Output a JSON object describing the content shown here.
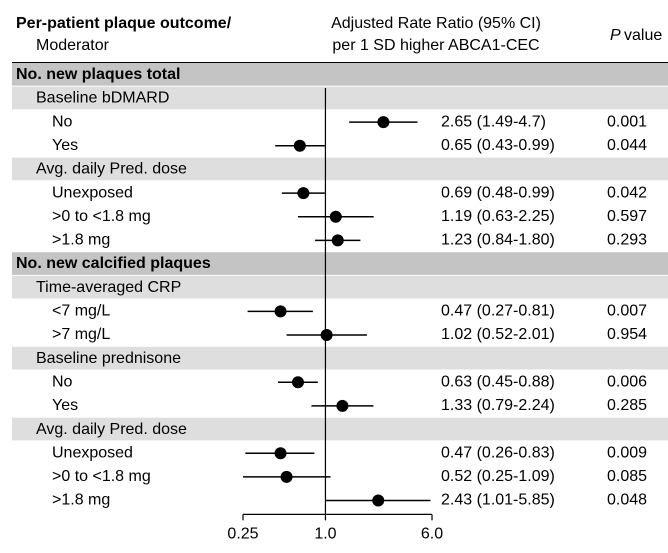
{
  "chart_data": {
    "type": "forest",
    "columns": {
      "outcome": [
        "Per-patient plaque outcome/",
        "Moderator"
      ],
      "estimate": [
        "Adjusted Rate Ratio (95% CI)",
        "per 1 SD higher ABCA1-CEC"
      ],
      "p": [
        "P",
        "value"
      ]
    },
    "xscale": "log",
    "xlim": [
      0.25,
      6
    ],
    "xticks": [
      0.25,
      {
        "value": 1,
        "label": "1.0"
      },
      {
        "value": 6,
        "label": "6.0"
      }
    ],
    "reference_line": 1,
    "color": "#000000",
    "groups": [
      {
        "title": "No. new plaques total",
        "subgroups": [
          {
            "title": "Baseline bDMARD",
            "rows": [
              {
                "label": "No",
                "estimate": 2.65,
                "lower": 1.49,
                "upper": 4.7,
                "ci_label": "2.65 (1.49-4.7)",
                "p": 0.001
              },
              {
                "label": "Yes",
                "estimate": 0.65,
                "lower": 0.43,
                "upper": 0.99,
                "ci_label": "0.65 (0.43-0.99)",
                "p": 0.044
              }
            ]
          },
          {
            "title": "Avg. daily Pred. dose",
            "rows": [
              {
                "label": "Unexposed",
                "estimate": 0.69,
                "lower": 0.48,
                "upper": 0.99,
                "ci_label": "0.69 (0.48-0.99)",
                "p": 0.042
              },
              {
                "label": ">0 to <1.8 mg",
                "estimate": 1.19,
                "lower": 0.63,
                "upper": 2.25,
                "ci_label": "1.19 (0.63-2.25)",
                "p": 0.597
              },
              {
                "label": ">1.8 mg",
                "estimate": 1.23,
                "lower": 0.84,
                "upper": 1.8,
                "ci_label": "1.23 (0.84-1.80)",
                "p": 0.293
              }
            ]
          }
        ]
      },
      {
        "title": "No. new calcified plaques",
        "subgroups": [
          {
            "title": "Time-averaged CRP",
            "rows": [
              {
                "label": "<7 mg/L",
                "estimate": 0.47,
                "lower": 0.27,
                "upper": 0.81,
                "ci_label": "0.47 (0.27-0.81)",
                "p": 0.007
              },
              {
                "label": ">7 mg/L",
                "estimate": 1.02,
                "lower": 0.52,
                "upper": 2.01,
                "ci_label": "1.02 (0.52-2.01)",
                "p": 0.954
              }
            ]
          },
          {
            "title": "Baseline prednisone",
            "rows": [
              {
                "label": "No",
                "estimate": 0.63,
                "lower": 0.45,
                "upper": 0.88,
                "ci_label": "0.63 (0.45-0.88)",
                "p": 0.006
              },
              {
                "label": "Yes",
                "estimate": 1.33,
                "lower": 0.79,
                "upper": 2.24,
                "ci_label": "1.33 (0.79-2.24)",
                "p": 0.285
              }
            ]
          },
          {
            "title": "Avg. daily Pred. dose",
            "rows": [
              {
                "label": "Unexposed",
                "estimate": 0.47,
                "lower": 0.26,
                "upper": 0.83,
                "ci_label": "0.47 (0.26-0.83)",
                "p": 0.009
              },
              {
                "label": ">0 to <1.8 mg",
                "estimate": 0.52,
                "lower": 0.25,
                "upper": 1.09,
                "ci_label": "0.52 (0.25-1.09)",
                "p": 0.085
              },
              {
                "label": ">1.8 mg",
                "estimate": 2.43,
                "lower": 1.01,
                "upper": 5.85,
                "ci_label": "2.43 (1.01-5.85)",
                "p": 0.048
              }
            ]
          }
        ]
      }
    ]
  }
}
